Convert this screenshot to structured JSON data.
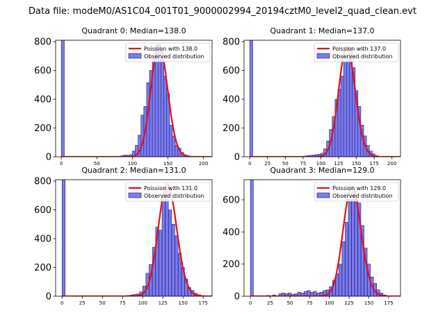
{
  "suptitle": "Data file: modeM0/AS1C04_001T01_9000002994_20194cztM0_level2_quad_clean.evt",
  "colors": {
    "hist_fill": "#7b7bee",
    "hist_edge": "#1c1c7a",
    "poisson_line": "#e31010"
  },
  "chart_data": [
    {
      "type": "bar",
      "title": "Quadrant 0: Median=138.0",
      "median": 138.0,
      "xlim": [
        -8,
        212
      ],
      "ylim": [
        0,
        810
      ],
      "xticks": [
        0,
        50,
        100,
        150,
        200
      ],
      "yticks": [
        0,
        200,
        400,
        600,
        800
      ],
      "legend": {
        "poisson": "Poission with 138.0",
        "observed": "Observed distribution",
        "placement": "top-right"
      },
      "histogram": {
        "bin_width": 4.2,
        "bins": [
          [
            0,
            810
          ],
          [
            80,
            3
          ],
          [
            84,
            8
          ],
          [
            88,
            12
          ],
          [
            92,
            10
          ],
          [
            96,
            15
          ],
          [
            100,
            40
          ],
          [
            104,
            80
          ],
          [
            108,
            150
          ],
          [
            112,
            290
          ],
          [
            116,
            350
          ],
          [
            120,
            515
          ],
          [
            124,
            600
          ],
          [
            128,
            680
          ],
          [
            132,
            780
          ],
          [
            136,
            760
          ],
          [
            140,
            690
          ],
          [
            144,
            560
          ],
          [
            148,
            440
          ],
          [
            152,
            220
          ],
          [
            156,
            145
          ],
          [
            160,
            80
          ],
          [
            164,
            60
          ],
          [
            168,
            30
          ],
          [
            172,
            15
          ],
          [
            176,
            8
          ],
          [
            180,
            4
          ]
        ]
      },
      "poisson_mean": 138.0
    },
    {
      "type": "bar",
      "title": "Quadrant 1: Median=137.0",
      "median": 137.0,
      "xlim": [
        -8,
        212
      ],
      "ylim": [
        0,
        810
      ],
      "xticks": [
        0,
        25,
        50,
        75,
        100,
        125,
        150,
        175,
        200
      ],
      "yticks": [
        0,
        200,
        400,
        600,
        800
      ],
      "legend": {
        "poisson": "Poission with 137.0",
        "observed": "Observed distribution",
        "placement": "top-right"
      },
      "histogram": {
        "bin_width": 4.2,
        "bins": [
          [
            0,
            810
          ],
          [
            76,
            5
          ],
          [
            80,
            8
          ],
          [
            84,
            10
          ],
          [
            88,
            12
          ],
          [
            92,
            15
          ],
          [
            96,
            18
          ],
          [
            100,
            25
          ],
          [
            104,
            55
          ],
          [
            108,
            110
          ],
          [
            112,
            190
          ],
          [
            116,
            280
          ],
          [
            120,
            400
          ],
          [
            124,
            470
          ],
          [
            128,
            560
          ],
          [
            132,
            660
          ],
          [
            136,
            700
          ],
          [
            140,
            760
          ],
          [
            144,
            620
          ],
          [
            148,
            460
          ],
          [
            152,
            350
          ],
          [
            156,
            220
          ],
          [
            160,
            145
          ],
          [
            164,
            80
          ],
          [
            168,
            40
          ],
          [
            172,
            20
          ],
          [
            176,
            8
          ]
        ]
      },
      "poisson_mean": 137.0
    },
    {
      "type": "bar",
      "title": "Quadrant 2: Median=131.0",
      "median": 131.0,
      "xlim": [
        -8,
        186
      ],
      "ylim": [
        0,
        810
      ],
      "xticks": [
        0,
        25,
        50,
        75,
        100,
        125,
        150,
        175
      ],
      "yticks": [
        0,
        200,
        400,
        600,
        800
      ],
      "legend": {
        "poisson": "Poission with 131.0",
        "observed": "Observed distribution",
        "placement": "top-right"
      },
      "histogram": {
        "bin_width": 3.8,
        "bins": [
          [
            0,
            810
          ],
          [
            80,
            5
          ],
          [
            84,
            8
          ],
          [
            88,
            12
          ],
          [
            92,
            15
          ],
          [
            96,
            30
          ],
          [
            100,
            70
          ],
          [
            104,
            160
          ],
          [
            108,
            220
          ],
          [
            112,
            340
          ],
          [
            116,
            480
          ],
          [
            120,
            460
          ],
          [
            124,
            700
          ],
          [
            128,
            780
          ],
          [
            132,
            600
          ],
          [
            136,
            500
          ],
          [
            140,
            420
          ],
          [
            144,
            300
          ],
          [
            148,
            200
          ],
          [
            152,
            120
          ],
          [
            156,
            60
          ],
          [
            160,
            40
          ],
          [
            164,
            20
          ],
          [
            168,
            10
          ],
          [
            172,
            5
          ]
        ]
      },
      "poisson_mean": 131.0
    },
    {
      "type": "bar",
      "title": "Quadrant 3: Median=129.0",
      "median": 129.0,
      "xlim": [
        -8,
        190
      ],
      "ylim": [
        0,
        725
      ],
      "xticks": [
        0,
        25,
        50,
        75,
        100,
        125,
        150,
        175
      ],
      "yticks": [
        0,
        200,
        400,
        600
      ],
      "legend": {
        "poisson": "Poission with 129.0",
        "observed": "Observed distribution",
        "placement": "top-right"
      },
      "histogram": {
        "bin_width": 3.8,
        "bins": [
          [
            0,
            725
          ],
          [
            20,
            5
          ],
          [
            28,
            8
          ],
          [
            36,
            15
          ],
          [
            40,
            20
          ],
          [
            44,
            15
          ],
          [
            48,
            20
          ],
          [
            52,
            12
          ],
          [
            56,
            15
          ],
          [
            60,
            25
          ],
          [
            64,
            20
          ],
          [
            68,
            30
          ],
          [
            72,
            35
          ],
          [
            76,
            25
          ],
          [
            80,
            30
          ],
          [
            84,
            20
          ],
          [
            88,
            25
          ],
          [
            92,
            35
          ],
          [
            96,
            40
          ],
          [
            100,
            60
          ],
          [
            104,
            100
          ],
          [
            108,
            140
          ],
          [
            112,
            200
          ],
          [
            116,
            340
          ],
          [
            120,
            460
          ],
          [
            124,
            600
          ],
          [
            128,
            680
          ],
          [
            132,
            600
          ],
          [
            136,
            580
          ],
          [
            140,
            440
          ],
          [
            144,
            300
          ],
          [
            148,
            200
          ],
          [
            152,
            120
          ],
          [
            156,
            80
          ],
          [
            160,
            40
          ],
          [
            164,
            20
          ],
          [
            168,
            8
          ]
        ]
      },
      "poisson_mean": 129.0
    }
  ]
}
